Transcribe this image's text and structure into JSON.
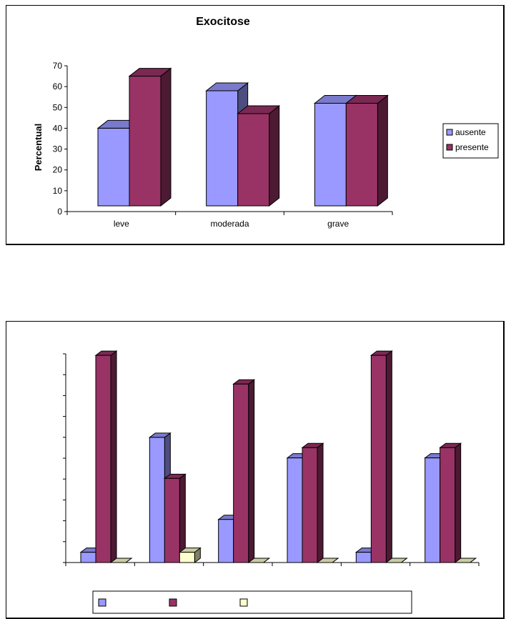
{
  "chart_data": [
    {
      "type": "bar",
      "title": "Exocitose",
      "xlabel": "",
      "ylabel": "Percentual",
      "ylim": [
        0,
        70
      ],
      "yticks": [
        0,
        10,
        20,
        30,
        40,
        50,
        60,
        70
      ],
      "categories": [
        "leve",
        "moderada",
        "grave"
      ],
      "series": [
        {
          "name": "ausente",
          "values": [
            40,
            58,
            52
          ],
          "color": "#9999ff"
        },
        {
          "name": "presente",
          "values": [
            65,
            47,
            52
          ],
          "color": "#993366"
        }
      ],
      "legend_position": "right"
    },
    {
      "type": "bar",
      "title": "",
      "xlabel": "",
      "ylabel": "",
      "categories": [
        "",
        "",
        "",
        "",
        "",
        ""
      ],
      "series": [
        {
          "name": "",
          "values": [
            5,
            61,
            21,
            51,
            5,
            51
          ],
          "color": "#9999ff"
        },
        {
          "name": "",
          "values": [
            101,
            41,
            87,
            56,
            101,
            56
          ],
          "color": "#993366"
        },
        {
          "name": "",
          "values": [
            0,
            5,
            0,
            0,
            0,
            0
          ],
          "color": "#ffffcc"
        }
      ],
      "legend_position": "bottom"
    }
  ]
}
